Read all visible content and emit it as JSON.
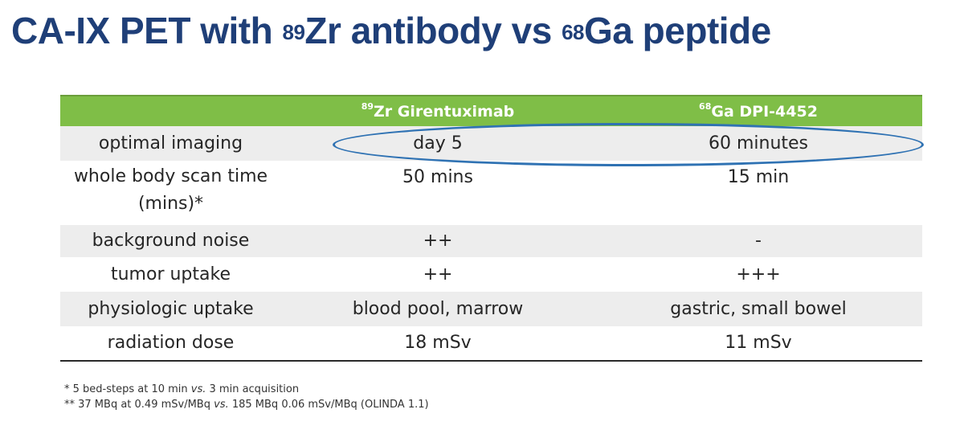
{
  "slide": {
    "title_part1": "CA-IX PET with ",
    "title_sup1": "89",
    "title_part2": "Zr antibody vs ",
    "title_sup2": "68",
    "title_part3": "Ga peptide"
  },
  "table": {
    "header": {
      "col1": "",
      "col2_sup": "89",
      "col2_text": "Zr Girentuximab",
      "col3_sup": "68",
      "col3_text": "Ga DPI-4452"
    },
    "rows": [
      {
        "label": "optimal imaging",
        "zr": "day 5",
        "ga": "60 minutes"
      },
      {
        "label_line1": "whole body scan time",
        "label_line2": "(mins)*",
        "zr": "50 mins",
        "ga": "15 min"
      },
      {
        "label": "background noise",
        "zr": "++",
        "ga": "-"
      },
      {
        "label": "tumor uptake",
        "zr": "++",
        "ga": "+++"
      },
      {
        "label": "physiologic uptake",
        "zr": "blood pool, marrow",
        "ga": "gastric, small bowel"
      },
      {
        "label": "radiation dose",
        "zr": "18 mSv",
        "ga": "11 mSv"
      }
    ]
  },
  "footnotes": {
    "note1_a": "* 5 bed-steps at 10 min ",
    "note1_vs": "vs.",
    "note1_b": " 3 min acquisition",
    "note2_a": "** 37 MBq at 0.49 mSv/MBq ",
    "note2_vs": "vs.",
    "note2_b": " 185 MBq 0.06 mSv/MBq (OLINDA 1.1)"
  },
  "colors": {
    "title": "#1f3f78",
    "header_bg": "#7fbe47",
    "row_shade": "#ededed",
    "highlight_ellipse": "#2f72b3"
  }
}
